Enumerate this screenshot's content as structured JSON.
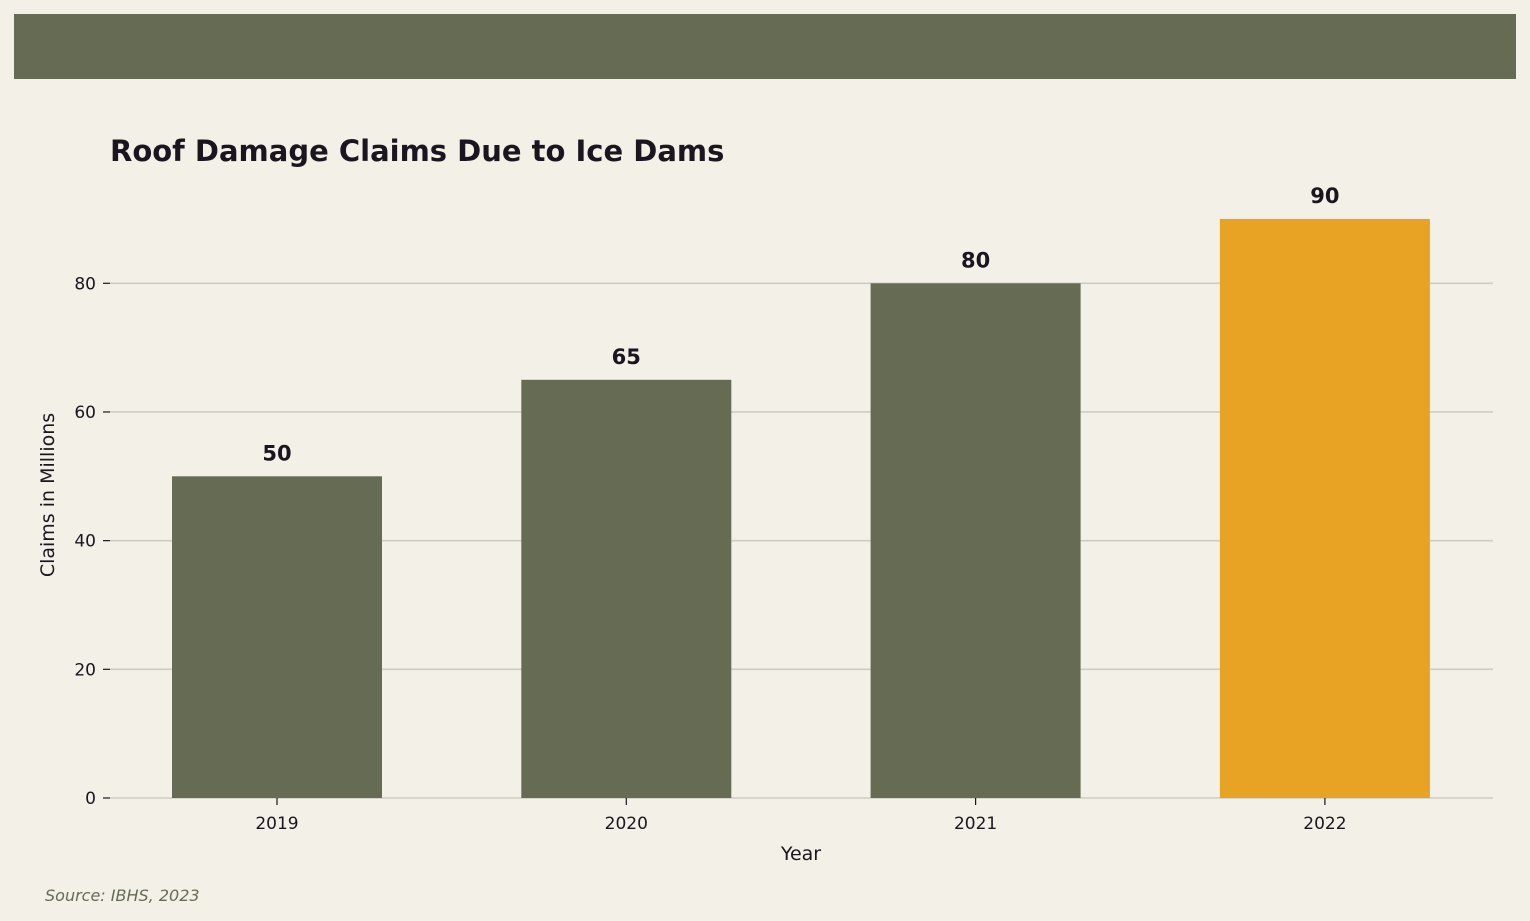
{
  "colors": {
    "background": "#f2f0e7",
    "bar": "#666b54",
    "highlight_bar": "#e8a324",
    "text": "#1b1520",
    "gridline": "#cfcdc0",
    "source_text": "#666b54"
  },
  "source": "Source: IBHS, 2023",
  "chart_data": {
    "type": "bar",
    "title": "Roof Damage Claims Due to Ice Dams",
    "xlabel": "Year",
    "ylabel": "Claims in Millions",
    "categories": [
      "2019",
      "2020",
      "2021",
      "2022"
    ],
    "values": [
      50,
      65,
      80,
      90
    ],
    "highlight_category": "2022",
    "ylim": [
      0,
      94.5
    ],
    "yticks": [
      0,
      20,
      40,
      60,
      80
    ],
    "grid": true,
    "legend": "none"
  }
}
